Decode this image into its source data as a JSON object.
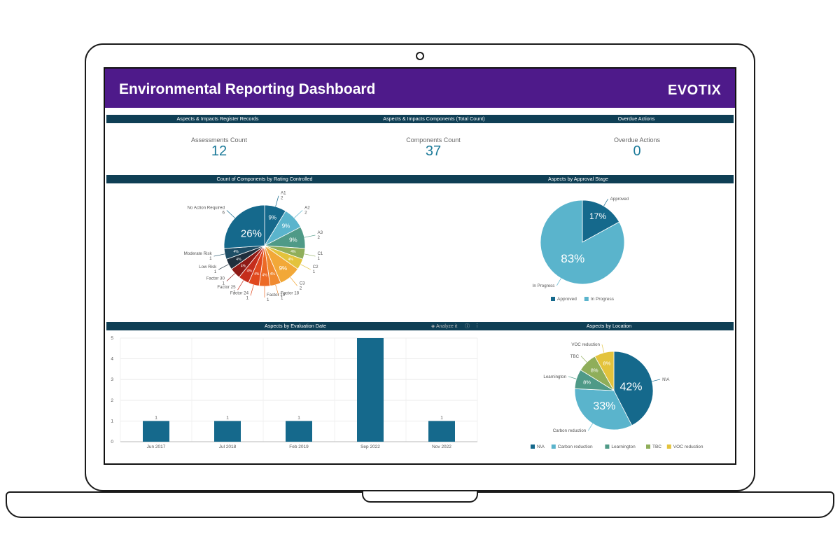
{
  "header": {
    "title": "Environmental Reporting Dashboard",
    "logo_text": "EVOTIX"
  },
  "sections": {
    "register_records": "Aspects & Impacts Register Records",
    "components_total": "Aspects & Impacts Components (Total Count)",
    "overdue_actions": "Overdue Actions",
    "rating_controlled": "Count of Components by Rating Controlled",
    "approval_stage": "Aspects by Approval Stage",
    "evaluation_date": "Aspects by Evaluation Date",
    "location": "Aspects by Location"
  },
  "kpis": {
    "assessments": {
      "label": "Assessments Count",
      "value": "12"
    },
    "components": {
      "label": "Components Count",
      "value": "37"
    },
    "overdue": {
      "label": "Overdue Actions",
      "value": "0"
    }
  },
  "toolbar": {
    "analyze_label": "Analyze it",
    "info_icon": "info-icon",
    "menu_icon": "kebab-menu-icon",
    "analyze_icon": "layers-icon"
  },
  "chart_data": [
    {
      "type": "pie",
      "title": "Count of Components by Rating Controlled",
      "slices": [
        {
          "name": "A1",
          "value": 2,
          "pct_label": "9%",
          "color": "#15698c"
        },
        {
          "name": "A2",
          "value": 2,
          "pct_label": "9%",
          "color": "#5ab4cc"
        },
        {
          "name": "A3",
          "value": 2,
          "pct_label": "9%",
          "color": "#4f9a87"
        },
        {
          "name": "C1",
          "value": 1,
          "pct_label": "4%",
          "color": "#8fae5a"
        },
        {
          "name": "C2",
          "value": 1,
          "pct_label": "4%",
          "color": "#e3c33c"
        },
        {
          "name": "C3",
          "value": 2,
          "pct_label": "9%",
          "color": "#f2a838"
        },
        {
          "name": "Factor 18",
          "value": 1,
          "pct_label": "4%",
          "color": "#f08a30"
        },
        {
          "name": "Factor 19",
          "value": 1,
          "pct_label": "4%",
          "color": "#ec6a26"
        },
        {
          "name": "Factor 24",
          "value": 1,
          "pct_label": "4%",
          "color": "#e0481e"
        },
        {
          "name": "Factor 25",
          "value": 1,
          "pct_label": "4%",
          "color": "#c52d1c"
        },
        {
          "name": "Factor 30",
          "value": 1,
          "pct_label": "4%",
          "color": "#8e1a16"
        },
        {
          "name": "Low Risk",
          "value": 1,
          "pct_label": "4%",
          "color": "#1f2f3d"
        },
        {
          "name": "Moderate Risk",
          "value": 1,
          "pct_label": "4%",
          "color": "#1e4e66"
        },
        {
          "name": "No Action Required",
          "value": 6,
          "pct_label": "26%",
          "color": "#15698c"
        }
      ]
    },
    {
      "type": "pie",
      "title": "Aspects by Approval Stage",
      "slices": [
        {
          "name": "Approved",
          "value": 17,
          "pct_label": "17%",
          "color": "#15698c"
        },
        {
          "name": "In Progress",
          "value": 83,
          "pct_label": "83%",
          "color": "#5ab4cc"
        }
      ],
      "legend": [
        "Approved",
        "In Progress"
      ],
      "legend_position": "bottom"
    },
    {
      "type": "bar",
      "title": "Aspects by Evaluation Date",
      "categories": [
        "Jun 2017",
        "Jul 2018",
        "Feb 2019",
        "Sep 2022",
        "Nov 2022"
      ],
      "values": [
        1,
        1,
        1,
        5,
        1
      ],
      "data_labels": [
        "1",
        "1",
        "1",
        "",
        "1"
      ],
      "ylim": [
        0,
        5
      ],
      "yticks": [
        "0",
        "1",
        "2",
        "3",
        "4",
        "5"
      ],
      "color": "#15698c",
      "grid": true
    },
    {
      "type": "pie",
      "title": "Aspects by Location",
      "slices": [
        {
          "name": "N\\A",
          "value": 42,
          "pct_label": "42%",
          "color": "#15698c"
        },
        {
          "name": "Carbon reduction",
          "value": 33,
          "pct_label": "33%",
          "color": "#5ab4cc"
        },
        {
          "name": "Learnington",
          "value": 8,
          "pct_label": "8%",
          "color": "#4f9a87"
        },
        {
          "name": "TBC",
          "value": 8,
          "pct_label": "8%",
          "color": "#8fae5a"
        },
        {
          "name": "VOC reduction",
          "value": 8,
          "pct_label": "8%",
          "color": "#e3c33c"
        }
      ],
      "legend": [
        "N\\A",
        "Carbon reduction",
        "Learnington",
        "TBC",
        "VOC reduction"
      ],
      "legend_position": "bottom"
    }
  ]
}
